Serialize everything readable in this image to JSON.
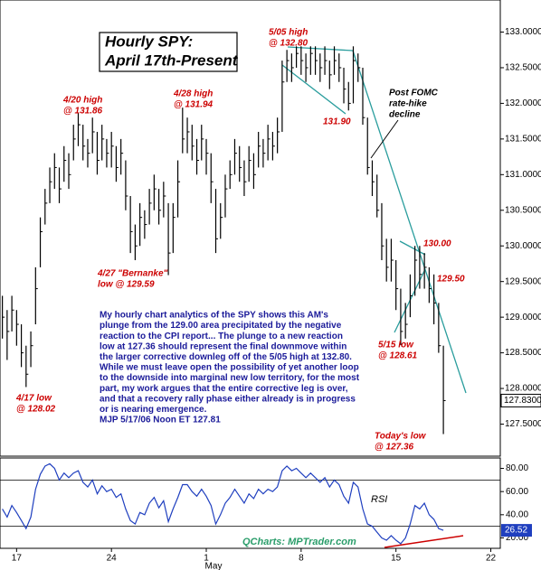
{
  "chart_data": {
    "type": "ohlc",
    "title": [
      "Hourly SPY:",
      "April 17th-Present"
    ],
    "color": "#000000",
    "close": [
      129.0,
      128.8,
      129.1,
      128.9,
      128.5,
      128.2,
      128.6,
      129.4,
      130.2,
      130.6,
      130.9,
      131.1,
      130.8,
      131.2,
      131.0,
      131.5,
      131.7,
      131.4,
      131.3,
      131.6,
      131.2,
      131.5,
      131.3,
      131.4,
      131.1,
      131.3,
      130.7,
      130.2,
      130.0,
      130.4,
      130.3,
      130.6,
      130.8,
      130.5,
      130.7,
      129.9,
      130.4,
      130.9,
      131.5,
      131.6,
      131.4,
      131.2,
      131.5,
      131.3,
      130.9,
      130.1,
      130.4,
      130.8,
      131.0,
      131.3,
      131.1,
      130.9,
      131.2,
      131.0,
      131.4,
      131.3,
      131.5,
      131.4,
      131.6,
      132.3,
      132.6,
      132.5,
      132.7,
      132.6,
      132.5,
      132.7,
      132.6,
      132.5,
      132.6,
      132.4,
      132.6,
      132.5,
      132.2,
      132.0,
      132.6,
      132.5,
      131.8,
      131.1,
      130.9,
      130.5,
      130.0,
      129.7,
      129.8,
      129.4,
      128.8,
      128.9,
      129.3,
      129.8,
      129.6,
      129.7,
      129.4,
      129.2,
      128.6,
      127.83
    ],
    "high": [
      129.3,
      129.1,
      129.3,
      129.1,
      128.9,
      128.6,
      128.8,
      129.7,
      130.4,
      130.8,
      131.1,
      131.3,
      131.1,
      131.4,
      131.3,
      131.7,
      131.86,
      131.7,
      131.5,
      131.8,
      131.6,
      131.7,
      131.5,
      131.6,
      131.4,
      131.5,
      131.2,
      130.7,
      130.3,
      130.6,
      130.5,
      130.8,
      131.0,
      130.8,
      130.9,
      130.6,
      130.6,
      131.2,
      131.94,
      131.8,
      131.7,
      131.5,
      131.7,
      131.5,
      131.3,
      130.8,
      130.6,
      131.0,
      131.2,
      131.5,
      131.4,
      131.2,
      131.4,
      131.3,
      131.6,
      131.5,
      131.7,
      131.6,
      131.8,
      132.6,
      132.75,
      132.7,
      132.8,
      132.8,
      132.7,
      132.8,
      132.8,
      132.7,
      132.8,
      132.6,
      132.8,
      132.7,
      132.5,
      132.3,
      132.8,
      132.7,
      132.5,
      131.8,
      131.2,
      131.0,
      130.6,
      130.1,
      130.1,
      129.8,
      129.4,
      129.2,
      129.6,
      130.0,
      130.0,
      129.9,
      129.7,
      129.6,
      129.2,
      128.6
    ],
    "low": [
      128.7,
      128.4,
      128.8,
      128.6,
      128.3,
      128.02,
      128.3,
      128.9,
      129.7,
      130.3,
      130.6,
      130.8,
      130.6,
      130.9,
      130.8,
      131.2,
      131.4,
      131.2,
      131.1,
      131.3,
      131.0,
      131.2,
      131.1,
      131.1,
      130.9,
      131.0,
      130.5,
      129.9,
      129.8,
      130.0,
      130.1,
      130.3,
      130.5,
      130.3,
      130.4,
      129.59,
      129.9,
      130.4,
      131.3,
      131.3,
      131.2,
      131.0,
      131.2,
      131.0,
      130.6,
      129.9,
      130.1,
      130.4,
      130.8,
      131.0,
      130.9,
      130.7,
      130.9,
      130.8,
      131.1,
      131.1,
      131.2,
      131.2,
      131.3,
      131.6,
      132.3,
      132.3,
      132.5,
      132.4,
      132.3,
      132.4,
      132.4,
      132.3,
      132.4,
      132.2,
      132.4,
      132.3,
      132.0,
      131.9,
      132.0,
      132.3,
      131.7,
      131.0,
      130.7,
      130.4,
      129.8,
      129.5,
      129.5,
      129.1,
      128.61,
      128.7,
      129.0,
      129.3,
      129.4,
      129.4,
      129.2,
      128.9,
      128.5,
      127.36
    ],
    "last_price": {
      "value": 127.83,
      "label": "127.8300"
    },
    "xlim": [
      -0.5,
      105
    ],
    "xticks": [
      {
        "value": 3,
        "label": "17"
      },
      {
        "value": 23,
        "label": "24"
      },
      {
        "value": 43,
        "label": "1"
      },
      {
        "value": 63,
        "label": "8"
      },
      {
        "value": 83,
        "label": "15"
      },
      {
        "value": 103,
        "label": "22"
      }
    ],
    "month_label": "May",
    "ylim": [
      127.05,
      133.45
    ],
    "yticks": [
      {
        "value": 127.5,
        "label": "127.5000"
      },
      {
        "value": 128.0,
        "label": "128.0000"
      },
      {
        "value": 128.5,
        "label": "128.5000"
      },
      {
        "value": 129.0,
        "label": "129.0000"
      },
      {
        "value": 129.5,
        "label": "129.5000"
      },
      {
        "value": 130.0,
        "label": "130.0000"
      },
      {
        "value": 130.5,
        "label": "130.5000"
      },
      {
        "value": 131.0,
        "label": "131.0000"
      },
      {
        "value": 131.5,
        "label": "131.5000"
      },
      {
        "value": 132.0,
        "label": "132.0000"
      },
      {
        "value": 132.5,
        "label": "132.5000"
      },
      {
        "value": 133.0,
        "label": "133.0000"
      }
    ],
    "annotations": [
      {
        "lines": [
          "5/05 high",
          "@ 132.80"
        ],
        "color": "#cc0000"
      },
      {
        "lines": [
          "4/20 high",
          "@ 131.86"
        ],
        "color": "#cc0000"
      },
      {
        "lines": [
          "4/28 high",
          "@ 131.94"
        ],
        "color": "#cc0000"
      },
      {
        "lines": [
          "4/27 \"Bernanke\"",
          "low @ 129.59"
        ],
        "color": "#cc0000"
      },
      {
        "lines": [
          "4/17 low",
          "@ 128.02"
        ],
        "color": "#cc0000"
      },
      {
        "lines": [
          "131.90"
        ],
        "color": "#cc0000"
      },
      {
        "lines": [
          "Post FOMC",
          "rate-hike",
          "decline"
        ],
        "color": "#000000"
      },
      {
        "lines": [
          "130.00"
        ],
        "color": "#cc0000"
      },
      {
        "lines": [
          "129.50"
        ],
        "color": "#cc0000"
      },
      {
        "lines": [
          "5/15 low",
          "@ 128.61"
        ],
        "color": "#cc0000"
      },
      {
        "lines": [
          "Today's low",
          "@ 127.36"
        ],
        "color": "#cc0000"
      }
    ],
    "commentary": [
      "My hourly chart analytics of the SPY shows this AM's",
      "plunge from the 129.00 area precipitated by the negative",
      "reaction to the CPI report... The plunge to a new reaction",
      "low at 127.36 should represent the final downmove within",
      "the larger corrective downleg off of the 5/05 high at 132.80.",
      "While we must leave open the possibility of yet another loop",
      "to the downside into marginal new low territory, for the most",
      "part, my work argues that the entire corrective leg is over,",
      "and that a recovery rally phase either already is in progress",
      "or is nearing emergence.",
      "MJP  5/17/06 Noon  ET  127.81"
    ],
    "source": "QCharts: MPTrader.com",
    "rsi": {
      "name": "RSI",
      "color": "#1f3fbf",
      "values": [
        45,
        38,
        48,
        42,
        35,
        28,
        38,
        62,
        75,
        82,
        84,
        80,
        70,
        76,
        72,
        76,
        78,
        68,
        64,
        70,
        58,
        65,
        60,
        62,
        55,
        58,
        45,
        35,
        32,
        42,
        40,
        50,
        55,
        46,
        52,
        34,
        45,
        55,
        66,
        66,
        60,
        56,
        62,
        56,
        48,
        32,
        40,
        50,
        55,
        62,
        56,
        50,
        58,
        54,
        62,
        58,
        62,
        60,
        64,
        78,
        82,
        78,
        80,
        76,
        72,
        76,
        72,
        68,
        72,
        64,
        70,
        66,
        56,
        50,
        68,
        64,
        45,
        32,
        30,
        25,
        20,
        18,
        22,
        18,
        15,
        20,
        32,
        48,
        45,
        50,
        40,
        36,
        28,
        26.52
      ],
      "ylim": [
        11,
        89
      ],
      "yticks": [
        {
          "value": 20,
          "label": "20.00"
        },
        {
          "value": 40,
          "label": "40.00"
        },
        {
          "value": 60,
          "label": "60.00"
        },
        {
          "value": 80,
          "label": "80.00"
        }
      ],
      "levels": [
        30,
        70
      ]
    }
  }
}
